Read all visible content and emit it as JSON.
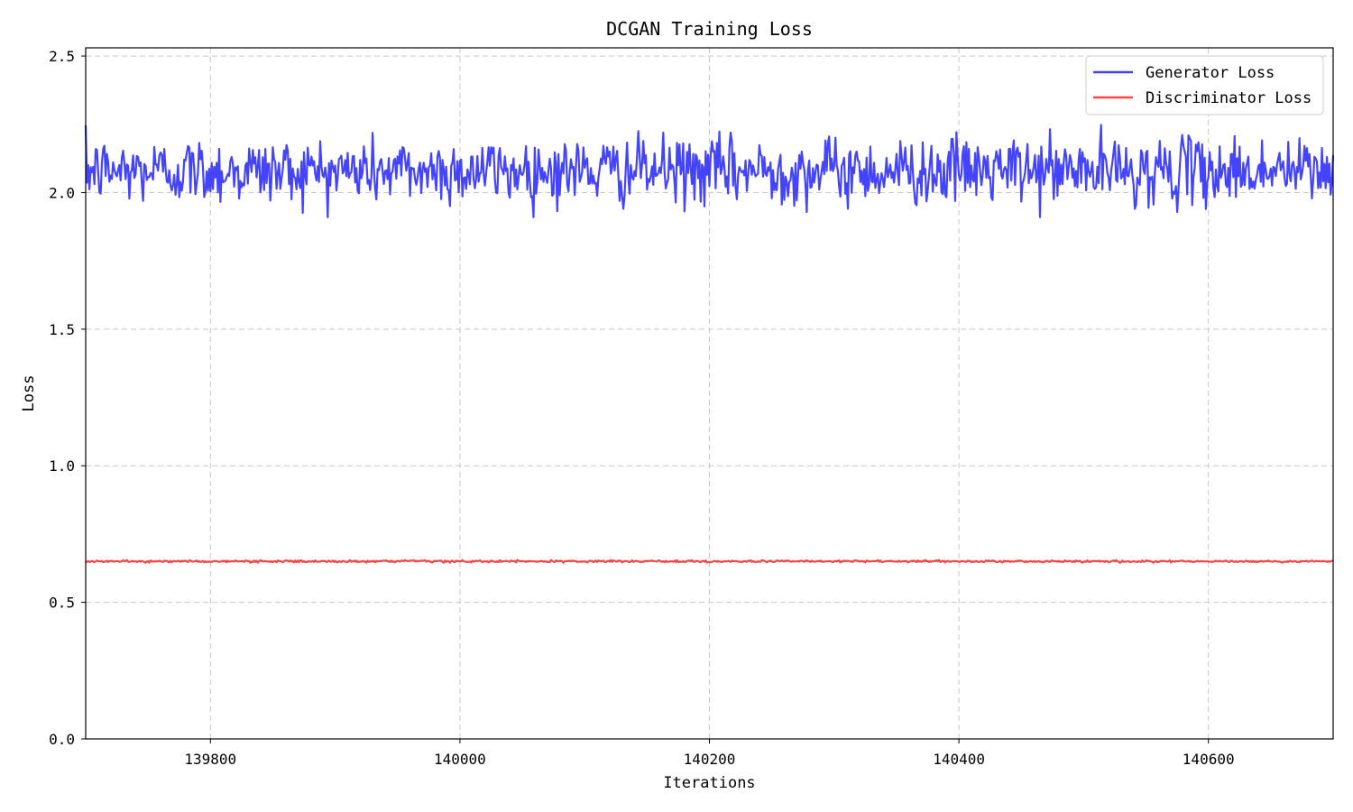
{
  "chart_data": {
    "type": "line",
    "title": "DCGAN Training Loss",
    "xlabel": "Iterations",
    "ylabel": "Loss",
    "xlim": [
      139700,
      140700
    ],
    "ylim": [
      0.0,
      2.53
    ],
    "xticks": [
      139800,
      140000,
      140200,
      140400,
      140600
    ],
    "xtick_labels": [
      "139800",
      "140000",
      "140200",
      "140400",
      "140600"
    ],
    "yticks": [
      0.0,
      0.5,
      1.0,
      1.5,
      2.0,
      2.5
    ],
    "ytick_labels": [
      "0.0",
      "0.5",
      "1.0",
      "1.5",
      "2.0",
      "2.5"
    ],
    "grid": true,
    "legend_position": "top-right",
    "series": [
      {
        "name": "Generator Loss",
        "color": "#4444ff",
        "x_start": 139700,
        "x_step": 1,
        "mean": 2.08,
        "noise": 0.06,
        "min": 1.91,
        "max": 2.3
      },
      {
        "name": "Discriminator Loss",
        "color": "#ff4444",
        "x_start": 139700,
        "x_step": 1,
        "mean": 0.65,
        "noise": 0.002,
        "min": 0.645,
        "max": 0.655
      }
    ]
  }
}
